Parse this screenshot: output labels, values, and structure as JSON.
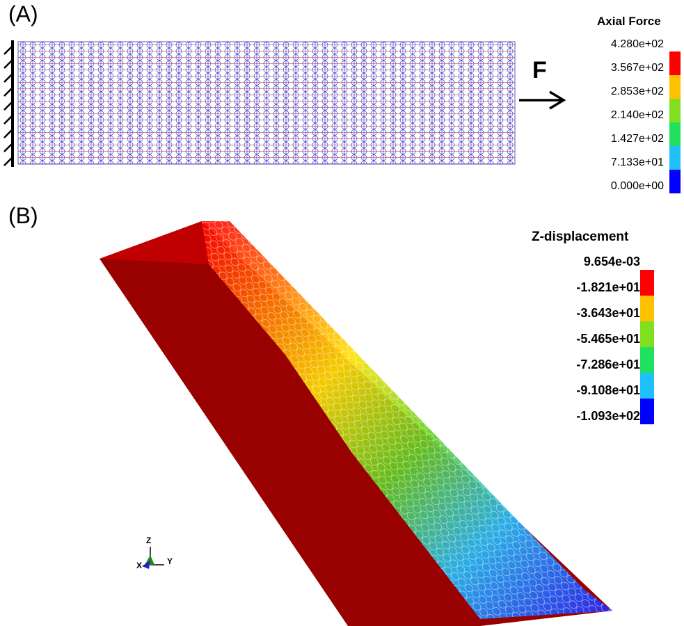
{
  "panelA": {
    "label": "(A)",
    "force_label": "F",
    "legend": {
      "title": "Axial Force",
      "ticks": [
        "4.280e+02",
        "3.567e+02",
        "2.853e+02",
        "2.140e+02",
        "1.427e+02",
        "7.133e+01",
        "0.000e+00"
      ],
      "colors": [
        "#ff0000",
        "#ffc000",
        "#80e020",
        "#20e060",
        "#20c0ff",
        "#0000ff"
      ]
    }
  },
  "panelB": {
    "label": "(B)",
    "legend": {
      "title": "Z-displacement",
      "ticks": [
        "9.654e-03",
        "-1.821e+01",
        "-3.643e+01",
        "-5.465e+01",
        "-7.286e+01",
        "-9.108e+01",
        "-1.093e+02"
      ],
      "colors": [
        "#ff0000",
        "#ffc000",
        "#80e020",
        "#20e060",
        "#20c0ff",
        "#0000ff"
      ]
    },
    "triad": {
      "z": "Z",
      "x": "X",
      "y": "Y"
    }
  }
}
